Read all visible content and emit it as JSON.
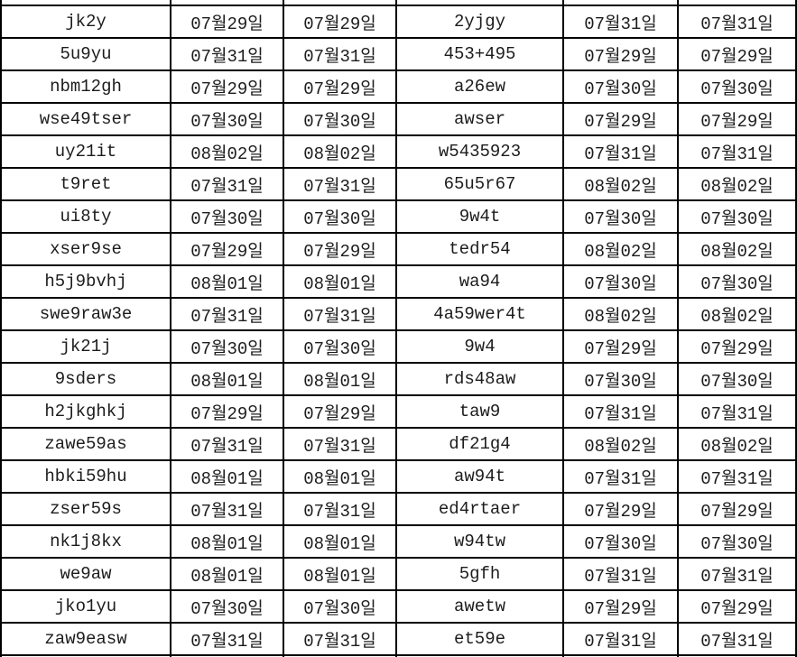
{
  "colors": {
    "background": "#ffffff",
    "grid_border": "#000000",
    "text": "#1c1c1c"
  },
  "table": {
    "description": "spreadsheet-like grid, 6 columns: id, date, date, id, date, date; top and bottom rows cut off by screenshot edges",
    "rows": [
      [
        "jk2y",
        "07월29일",
        "07월29일",
        "2yjgy",
        "07월31일",
        "07월31일"
      ],
      [
        "5u9yu",
        "07월31일",
        "07월31일",
        "453+495",
        "07월29일",
        "07월29일"
      ],
      [
        "nbm12gh",
        "07월29일",
        "07월29일",
        "a26ew",
        "07월30일",
        "07월30일"
      ],
      [
        "wse49tser",
        "07월30일",
        "07월30일",
        "awser",
        "07월29일",
        "07월29일"
      ],
      [
        "uy21it",
        "08월02일",
        "08월02일",
        "w5435923",
        "07월31일",
        "07월31일"
      ],
      [
        "t9ret",
        "07월31일",
        "07월31일",
        "65u5r67",
        "08월02일",
        "08월02일"
      ],
      [
        "ui8ty",
        "07월30일",
        "07월30일",
        "9w4t",
        "07월30일",
        "07월30일"
      ],
      [
        "xser9se",
        "07월29일",
        "07월29일",
        "tedr54",
        "08월02일",
        "08월02일"
      ],
      [
        "h5j9bvhj",
        "08월01일",
        "08월01일",
        "wa94",
        "07월30일",
        "07월30일"
      ],
      [
        "swe9raw3e",
        "07월31일",
        "07월31일",
        "4a59wer4t",
        "08월02일",
        "08월02일"
      ],
      [
        "jk21j",
        "07월30일",
        "07월30일",
        "9w4",
        "07월29일",
        "07월29일"
      ],
      [
        "9sders",
        "08월01일",
        "08월01일",
        "rds48aw",
        "07월30일",
        "07월30일"
      ],
      [
        "h2jkghkj",
        "07월29일",
        "07월29일",
        "taw9",
        "07월31일",
        "07월31일"
      ],
      [
        "zawe59as",
        "07월31일",
        "07월31일",
        "df21g4",
        "08월02일",
        "08월02일"
      ],
      [
        "hbki59hu",
        "08월01일",
        "08월01일",
        "aw94t",
        "07월31일",
        "07월31일"
      ],
      [
        "zser59s",
        "07월31일",
        "07월31일",
        "ed4rtaer",
        "07월29일",
        "07월29일"
      ],
      [
        "nk1j8kx",
        "08월01일",
        "08월01일",
        "w94tw",
        "07월30일",
        "07월30일"
      ],
      [
        "we9aw",
        "08월01일",
        "08월01일",
        "5gfh",
        "07월31일",
        "07월31일"
      ],
      [
        "jko1yu",
        "07월30일",
        "07월30일",
        "awetw",
        "07월29일",
        "07월29일"
      ],
      [
        "zaw9easw",
        "07월31일",
        "07월31일",
        "et59e",
        "07월31일",
        "07월31일"
      ]
    ]
  }
}
